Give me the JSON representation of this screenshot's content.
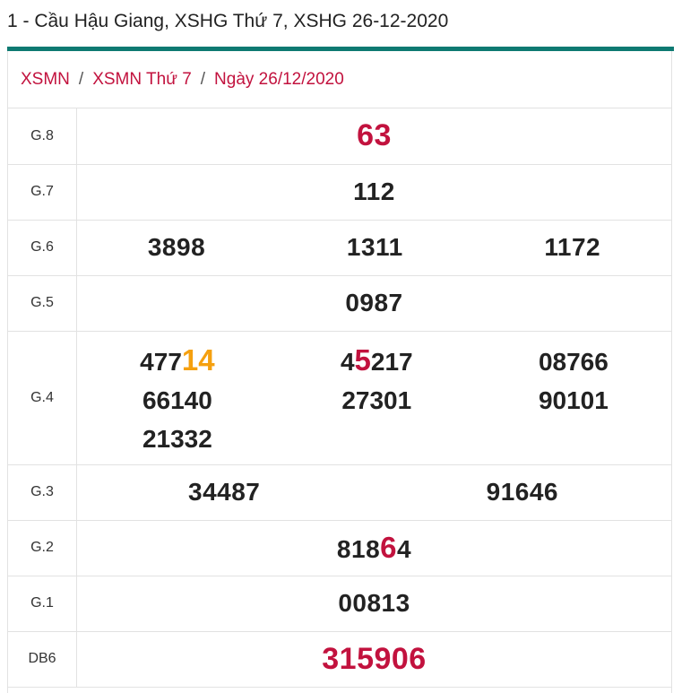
{
  "header": {
    "title": "1 - Cầu Hậu Giang, XSHG Thứ 7, XSHG 26-12-2020"
  },
  "colors": {
    "accent": "#0e7a72",
    "link": "#c2123e",
    "highlight_orange": "#f5a00f"
  },
  "breadcrumb": {
    "items": [
      "XSMN",
      "XSMN Thứ 7",
      "Ngày 26/12/2020"
    ],
    "separator": "/"
  },
  "results": {
    "g8": {
      "label": "G.8",
      "values": [
        "63"
      ]
    },
    "g7": {
      "label": "G.7",
      "values": [
        "112"
      ]
    },
    "g6": {
      "label": "G.6",
      "values": [
        "3898",
        "1311",
        "1172"
      ]
    },
    "g5": {
      "label": "G.5",
      "values": [
        "0987"
      ]
    },
    "g4": {
      "label": "G.4",
      "values": [
        {
          "plain": "477",
          "highlight": "14",
          "after": ""
        },
        {
          "plain": "4",
          "highlight": "5",
          "after": "217"
        },
        {
          "plain": "08766",
          "highlight": "",
          "after": ""
        },
        "66140",
        "27301",
        "90101",
        "21332"
      ]
    },
    "g3": {
      "label": "G.3",
      "values": [
        "34487",
        "91646"
      ]
    },
    "g2": {
      "label": "G.2",
      "values": [
        {
          "plain": "818",
          "highlight": "6",
          "after": "4"
        }
      ]
    },
    "g1": {
      "label": "G.1",
      "values": [
        "00813"
      ]
    },
    "db": {
      "label": "DB6",
      "values": [
        "315906"
      ]
    }
  }
}
